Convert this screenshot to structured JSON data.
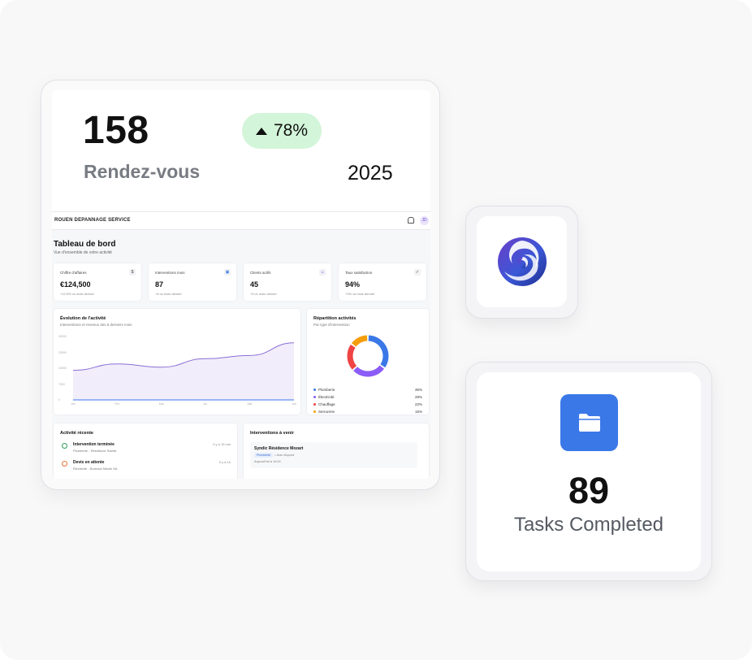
{
  "appointments": {
    "value": "158",
    "label": "Rendez-vous",
    "change": "78%",
    "year": "2025"
  },
  "dashboard": {
    "brand": "ROUEN DEPANNAGE SERVICE",
    "avatar_initials": "JD",
    "title": "Tableau de bord",
    "subtitle": "Vue d'ensemble de votre activité",
    "kpis": [
      {
        "label": "Chiffre d'affaires",
        "icon": "$",
        "value": "€124,500",
        "delta": "+12.5% vs mois dernier"
      },
      {
        "label": "Interventions mois",
        "icon": "calendar",
        "value": "87",
        "delta": "+8 vs mois dernier"
      },
      {
        "label": "Clients actifs",
        "icon": "users",
        "value": "45",
        "delta": "+5 vs mois dernier"
      },
      {
        "label": "Taux satisfaction",
        "icon": "check",
        "value": "94%",
        "delta": "+2% vs mois dernier"
      }
    ],
    "activity_chart": {
      "title": "Évolution de l'activité",
      "subtitle": "Interventions et revenus des 6 derniers mois"
    },
    "distribution": {
      "title": "Répartition activités",
      "subtitle": "Par type d'intervention"
    },
    "recent": {
      "title": "Activité récente",
      "items": [
        {
          "title": "Intervention terminée",
          "sub": "Plomberie - Résidence Soleils",
          "time": "Il y a 15 min",
          "color": "#2f9e5b"
        },
        {
          "title": "Devis en attente",
          "sub": "Électricité - Bureaux Martin SA",
          "time": "Il y a 1h",
          "color": "#e8742f"
        }
      ]
    },
    "upcoming": {
      "title": "Interventions à venir",
      "card_title": "Syndic Résidence Mozart",
      "tag": "Plomberie",
      "person": "• Jean Dupont",
      "date": "Aujourd'hui à 14:00"
    }
  },
  "chart_data": [
    {
      "type": "area",
      "title": "Évolution de l'activité",
      "x": [
        "Jan",
        "Fév",
        "Mar",
        "Avr",
        "Mai",
        "Jun"
      ],
      "y_ticks": [
        "30000",
        "22500",
        "15000",
        "7500",
        "0"
      ],
      "ylim": [
        0,
        30000
      ],
      "series": [
        {
          "values": [
            14000,
            17000,
            15500,
            19500,
            21000,
            27000
          ],
          "color": "#8b6fd6"
        },
        {
          "values": [
            0,
            0,
            0,
            0,
            0,
            0
          ],
          "color": "#3a78e8"
        }
      ]
    },
    {
      "type": "pie",
      "title": "Répartition activités",
      "categories": [
        "Plomberie",
        "Électricité",
        "Chauffage",
        "Serrurerie"
      ],
      "values": [
        35,
        28,
        22,
        15
      ],
      "labels": [
        "35%",
        "28%",
        "22%",
        "15%"
      ],
      "colors": [
        "#3a78e8",
        "#8b5cf6",
        "#ef4444",
        "#f59e0b"
      ]
    }
  ],
  "tasks": {
    "value": "89",
    "label": "Tasks Completed"
  },
  "colors": {
    "badge_bg": "#d3f5d9",
    "folder_blue": "#3a78e8"
  },
  "icons": {
    "logo": "swirl-logo-icon",
    "folder": "folder-icon"
  }
}
